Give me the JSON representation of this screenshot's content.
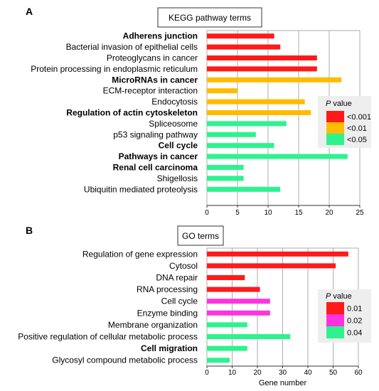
{
  "chart_data": [
    {
      "type": "bar",
      "orientation": "horizontal",
      "panel": "A",
      "title": "KEGG pathway terms",
      "xlabel": "",
      "xlim": [
        0,
        25
      ],
      "xticks": [
        0,
        5,
        10,
        15,
        20,
        25
      ],
      "grid": true,
      "legend": {
        "title_italic": "P",
        "title_rest": " value",
        "placement": "right",
        "entries": [
          {
            "label": "<0.001",
            "color": "#ff1a1a"
          },
          {
            "label": "<0.01",
            "color": "#ffbb00"
          },
          {
            "label": "<0.05",
            "color": "#2ef28e"
          }
        ]
      },
      "categories": [
        {
          "label": "Adherens junction",
          "value": 11,
          "group": 0,
          "bold": true
        },
        {
          "label": "Bacterial invasion of epithelial cells",
          "value": 12,
          "group": 0,
          "bold": false
        },
        {
          "label": "Proteoglycans in cancer",
          "value": 18,
          "group": 0,
          "bold": false
        },
        {
          "label": "Protein processing in endoplasmic reticulum",
          "value": 18,
          "group": 0,
          "bold": false
        },
        {
          "label": "MicroRNAs in cancer",
          "value": 22,
          "group": 1,
          "bold": true
        },
        {
          "label": "ECM-receptor interaction",
          "value": 5,
          "group": 1,
          "bold": false
        },
        {
          "label": "Endocytosis",
          "value": 16,
          "group": 1,
          "bold": false
        },
        {
          "label": "Regulation of actin cytoskeleton",
          "value": 17,
          "group": 1,
          "bold": true
        },
        {
          "label": "Spliceosome",
          "value": 13,
          "group": 2,
          "bold": false
        },
        {
          "label": "p53 signaling pathway",
          "value": 8,
          "group": 2,
          "bold": false
        },
        {
          "label": "Cell cycle",
          "value": 11,
          "group": 2,
          "bold": true
        },
        {
          "label": "Pathways in cancer",
          "value": 23,
          "group": 2,
          "bold": true
        },
        {
          "label": "Renal cell carcinoma",
          "value": 6,
          "group": 2,
          "bold": true
        },
        {
          "label": "Shigellosis",
          "value": 6,
          "group": 2,
          "bold": false
        },
        {
          "label": "Ubiquitin mediated proteolysis",
          "value": 12,
          "group": 2,
          "bold": false
        }
      ]
    },
    {
      "type": "bar",
      "orientation": "horizontal",
      "panel": "B",
      "title": "GO terms",
      "xlabel": "Gene number",
      "xlim": [
        0,
        60
      ],
      "xticks": [
        0,
        10,
        20,
        30,
        40,
        50,
        60
      ],
      "grid": true,
      "legend": {
        "title_italic": "P",
        "title_rest": " value",
        "placement": "right",
        "entries": [
          {
            "label": "0.01",
            "color": "#ff1a1a"
          },
          {
            "label": "0.02",
            "color": "#ff33dd"
          },
          {
            "label": "0.04",
            "color": "#2ef28e"
          }
        ]
      },
      "categories": [
        {
          "label": "Regulation of gene expression",
          "value": 56,
          "group": 0,
          "bold": false
        },
        {
          "label": "Cytosol",
          "value": 51,
          "group": 0,
          "bold": false
        },
        {
          "label": "DNA repair",
          "value": 15,
          "group": 0,
          "bold": false
        },
        {
          "label": "RNA processing",
          "value": 21,
          "group": 0,
          "bold": false
        },
        {
          "label": "Cell cycle",
          "value": 25,
          "group": 1,
          "bold": false
        },
        {
          "label": "Enzyme binding",
          "value": 25,
          "group": 1,
          "bold": false
        },
        {
          "label": "Membrane organization",
          "value": 16,
          "group": 2,
          "bold": false
        },
        {
          "label": "Positive regulation of cellular metabolic process",
          "value": 33,
          "group": 2,
          "bold": false
        },
        {
          "label": "Cell migration",
          "value": 16,
          "group": 2,
          "bold": true
        },
        {
          "label": "Glycosyl compound metabolic process",
          "value": 9,
          "group": 2,
          "bold": false
        }
      ]
    }
  ]
}
